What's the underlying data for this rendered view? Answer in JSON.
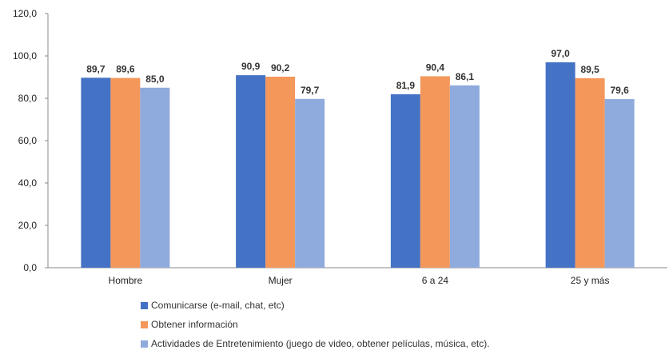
{
  "chart_data": {
    "type": "bar",
    "categories": [
      "Hombre",
      "Mujer",
      "6 a 24",
      "25 y más"
    ],
    "series": [
      {
        "name": "Comunicarse (e-mail, chat, etc)",
        "values": [
          89.7,
          90.9,
          81.9,
          97.0
        ],
        "labels": [
          "89,7",
          "90,9",
          "81,9",
          "97,0"
        ],
        "color": "#4472C4"
      },
      {
        "name": "Obtener información",
        "values": [
          89.6,
          90.2,
          90.4,
          89.5
        ],
        "labels": [
          "89,6",
          "90,2",
          "90,4",
          "89,5"
        ],
        "color": "#F4975A"
      },
      {
        "name": "Actividades de Entretenimiento (juego de video, obtener películas, música, etc).",
        "values": [
          85.0,
          79.7,
          86.1,
          79.6
        ],
        "labels": [
          "85,0",
          "79,7",
          "86,1",
          "79,6"
        ],
        "color": "#8FAADC"
      }
    ],
    "ylim": [
      0,
      120
    ],
    "yticks": [
      0,
      20,
      40,
      60,
      80,
      100,
      120
    ],
    "ytick_labels": [
      "0,0",
      "20,0",
      "40,0",
      "60,0",
      "80,0",
      "100,0",
      "120,0"
    ],
    "title": "",
    "xlabel": "",
    "ylabel": "",
    "grid": false,
    "legend_position": "bottom"
  }
}
